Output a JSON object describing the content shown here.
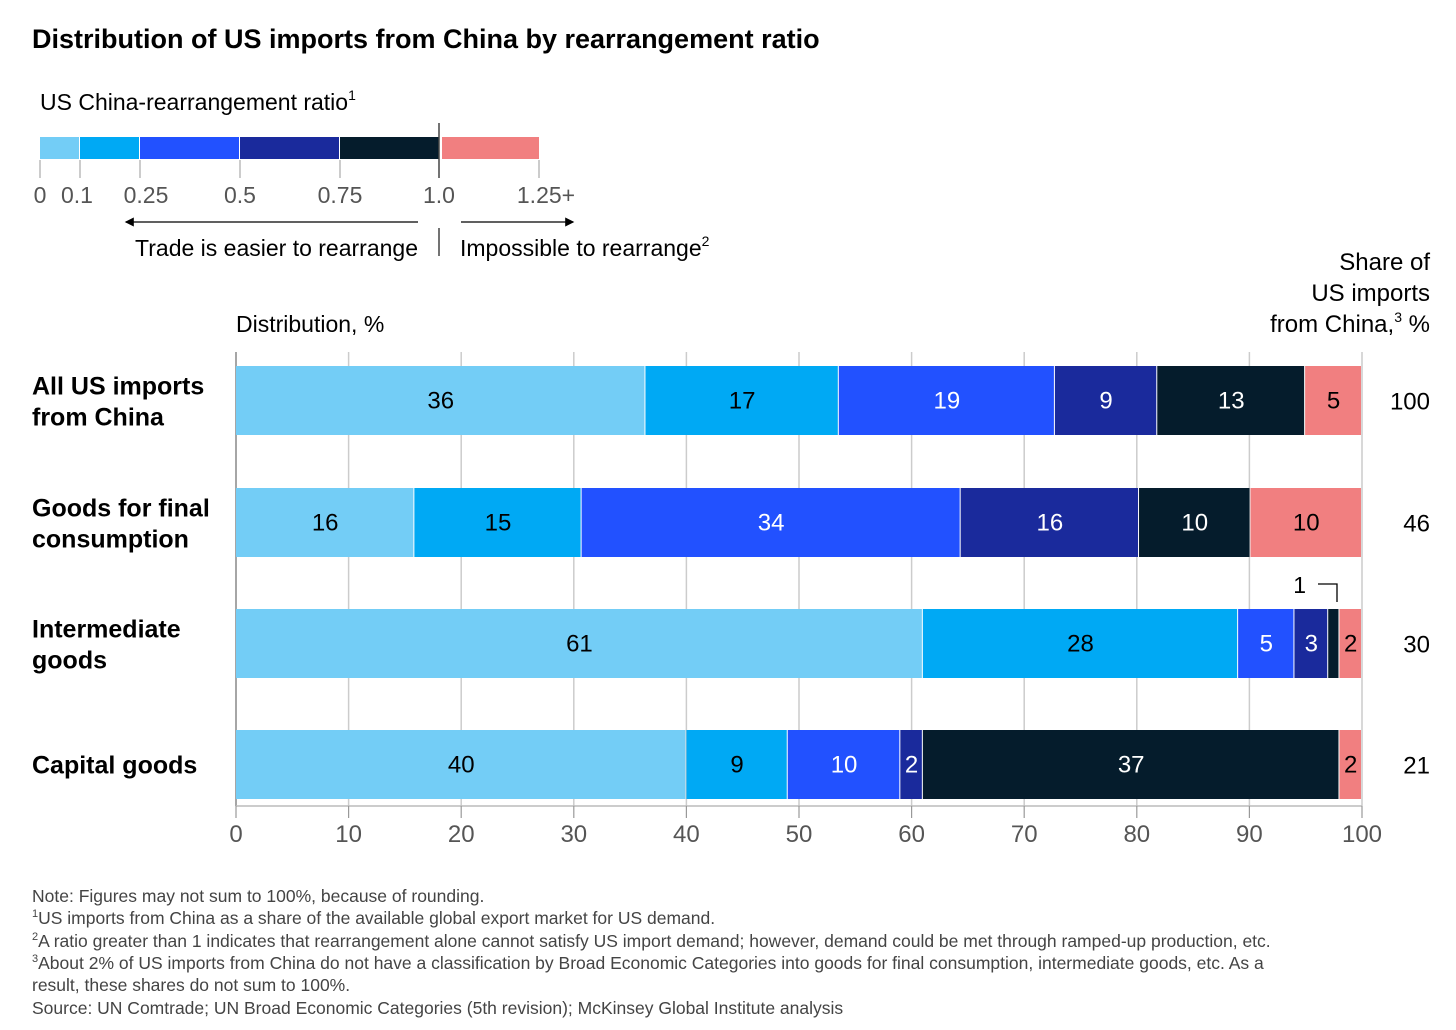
{
  "title": "Distribution of US imports from China by rearrangement ratio",
  "legend": {
    "title": "US China-rearrangement ratio",
    "title_sup": "1",
    "colors": [
      "#73cdf6",
      "#00a9f4",
      "#2251ff",
      "#1a2a9c",
      "#051c2c",
      "#f17f80"
    ],
    "ticks": [
      "0",
      "0.1",
      "0.25",
      "0.5",
      "0.75",
      "1.0",
      "1.25+"
    ],
    "left_note": "Trade is easier to rearrange",
    "right_note": "Impossible to rearrange",
    "right_note_sup": "2"
  },
  "distribution_label": "Distribution, %",
  "share_header": {
    "line1": "Share of",
    "line2": "US imports",
    "line3": "from China,",
    "line3_sup": "3",
    "line3_end": " %"
  },
  "callout": "1",
  "chart_data": {
    "type": "bar",
    "orientation": "horizontal",
    "stacked": true,
    "categories": [
      [
        "All US imports",
        "from China"
      ],
      [
        "Goods for final",
        "consumption"
      ],
      [
        "Intermediate",
        "goods"
      ],
      [
        "Capital goods"
      ]
    ],
    "series_colors": [
      "#73cdf6",
      "#00a9f4",
      "#2251ff",
      "#1a2a9c",
      "#051c2c",
      "#f17f80"
    ],
    "segment_ranges": [
      "0–0.1",
      "0.1–0.25",
      "0.25–0.5",
      "0.5–0.75",
      "0.75–1.0",
      "1.25+"
    ],
    "values": [
      [
        36,
        17,
        19,
        9,
        13,
        5
      ],
      [
        16,
        15,
        34,
        16,
        10,
        10
      ],
      [
        61,
        28,
        5,
        3,
        1,
        2
      ],
      [
        40,
        9,
        10,
        2,
        37,
        2
      ]
    ],
    "segment_labels": [
      [
        "36",
        "17",
        "19",
        "9",
        "13",
        "5"
      ],
      [
        "16",
        "15",
        "34",
        "16",
        "10",
        "10"
      ],
      [
        "61",
        "28",
        "5",
        "3",
        "",
        "2"
      ],
      [
        "40",
        "9",
        "10",
        "2",
        "37",
        "2"
      ]
    ],
    "share_of_us_imports": [
      "100",
      "46",
      "30",
      "21"
    ],
    "xlim": [
      0,
      100
    ],
    "xticks": [
      "0",
      "10",
      "20",
      "30",
      "40",
      "50",
      "60",
      "70",
      "80",
      "90",
      "100"
    ],
    "xlabel": "Distribution, %",
    "grid": true
  },
  "notes": [
    {
      "sup": "",
      "text": "Note: Figures may not sum to 100%, because of rounding."
    },
    {
      "sup": "1",
      "text": "US imports from China as a share of the available global export market for US demand."
    },
    {
      "sup": "2",
      "text": "A ratio greater than 1 indicates that rearrangement alone cannot satisfy US import demand; however, demand could be met through ramped-up production, etc."
    },
    {
      "sup": "3",
      "text": "About 2% of US imports from China do not have a classification by Broad Economic Categories into goods for final consumption, intermediate goods, etc. As a"
    },
    {
      "sup": "",
      "text": "result, these shares do not sum to 100%."
    },
    {
      "sup": "",
      "text": "Source: UN Comtrade; UN Broad Economic Categories (5th revision); McKinsey Global Institute analysis"
    }
  ]
}
